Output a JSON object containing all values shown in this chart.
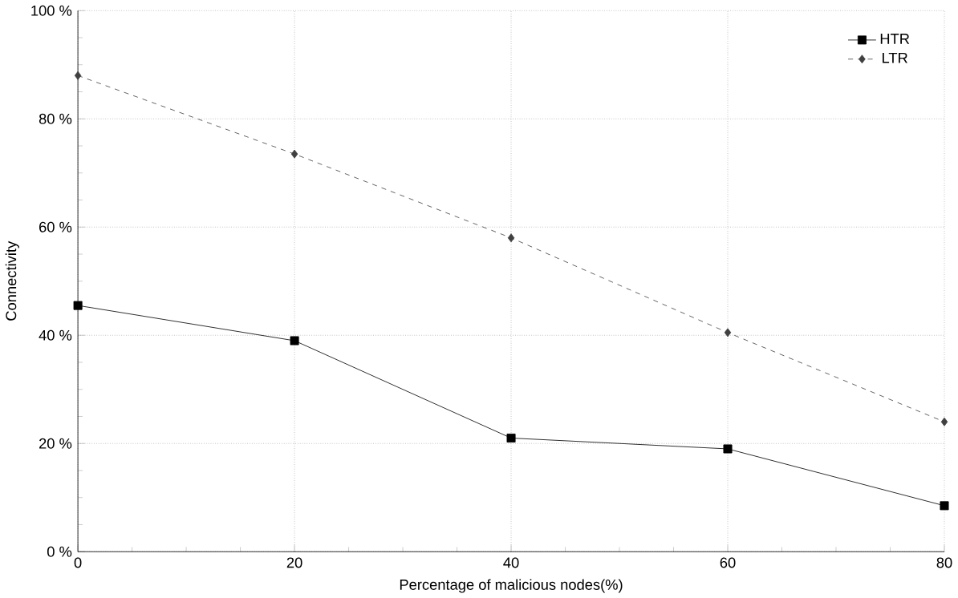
{
  "chart_data": {
    "type": "line",
    "xlabel": "Percentage of malicious nodes(%)",
    "ylabel": "Connectivity",
    "x": [
      0,
      20,
      40,
      60,
      80
    ],
    "series": [
      {
        "name": "HTR",
        "color": "#000000",
        "values": [
          45.5,
          39,
          21,
          19,
          8.5
        ],
        "marker": "square",
        "line_style": "solid"
      },
      {
        "name": "LTR",
        "color": "#404040",
        "values": [
          88,
          73.5,
          58,
          40.5,
          24
        ],
        "marker": "diamond",
        "line_style": "dashed"
      }
    ],
    "xlim": [
      0,
      80
    ],
    "ylim": [
      0,
      100
    ],
    "xticks": [
      0,
      20,
      40,
      60,
      80
    ],
    "yticks": [
      {
        "value": 0,
        "label": "0 %"
      },
      {
        "value": 20,
        "label": "20 %"
      },
      {
        "value": 40,
        "label": "40 %"
      },
      {
        "value": 60,
        "label": "60 %"
      },
      {
        "value": 80,
        "label": "80 %"
      },
      {
        "value": 100,
        "label": "100 %"
      }
    ],
    "grid": true,
    "legend": "top right"
  }
}
